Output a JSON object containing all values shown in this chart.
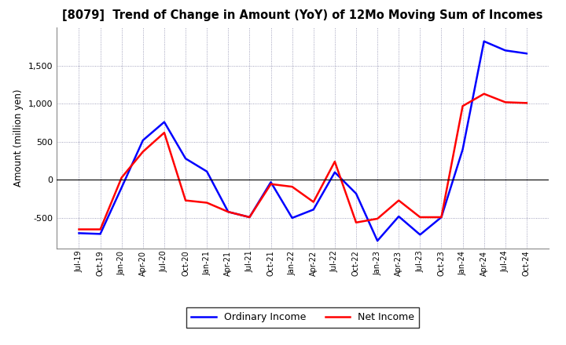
{
  "title": "[8079]  Trend of Change in Amount (YoY) of 12Mo Moving Sum of Incomes",
  "ylabel": "Amount (million yen)",
  "x_labels": [
    "Jul-19",
    "Oct-19",
    "Jan-20",
    "Apr-20",
    "Jul-20",
    "Oct-20",
    "Jan-21",
    "Apr-21",
    "Jul-21",
    "Oct-21",
    "Jan-22",
    "Apr-22",
    "Jul-22",
    "Oct-22",
    "Jan-23",
    "Apr-23",
    "Jul-23",
    "Oct-23",
    "Jan-24",
    "Apr-24",
    "Jul-24",
    "Oct-24"
  ],
  "ordinary_income": [
    -700,
    -710,
    -100,
    520,
    760,
    280,
    110,
    -420,
    -490,
    -30,
    -500,
    -390,
    100,
    -180,
    -800,
    -480,
    -720,
    -490,
    400,
    1820,
    1700,
    1660
  ],
  "net_income": [
    -650,
    -650,
    30,
    370,
    620,
    -270,
    -300,
    -420,
    -490,
    -55,
    -90,
    -290,
    240,
    -560,
    -510,
    -270,
    -490,
    -490,
    970,
    1130,
    1020,
    1010
  ],
  "ordinary_color": "#0000ff",
  "net_color": "#ff0000",
  "background_color": "#ffffff",
  "grid_color": "#aaaacc",
  "ylim": [
    -900,
    2000
  ],
  "yticks": [
    -500,
    0,
    500,
    1000,
    1500
  ]
}
